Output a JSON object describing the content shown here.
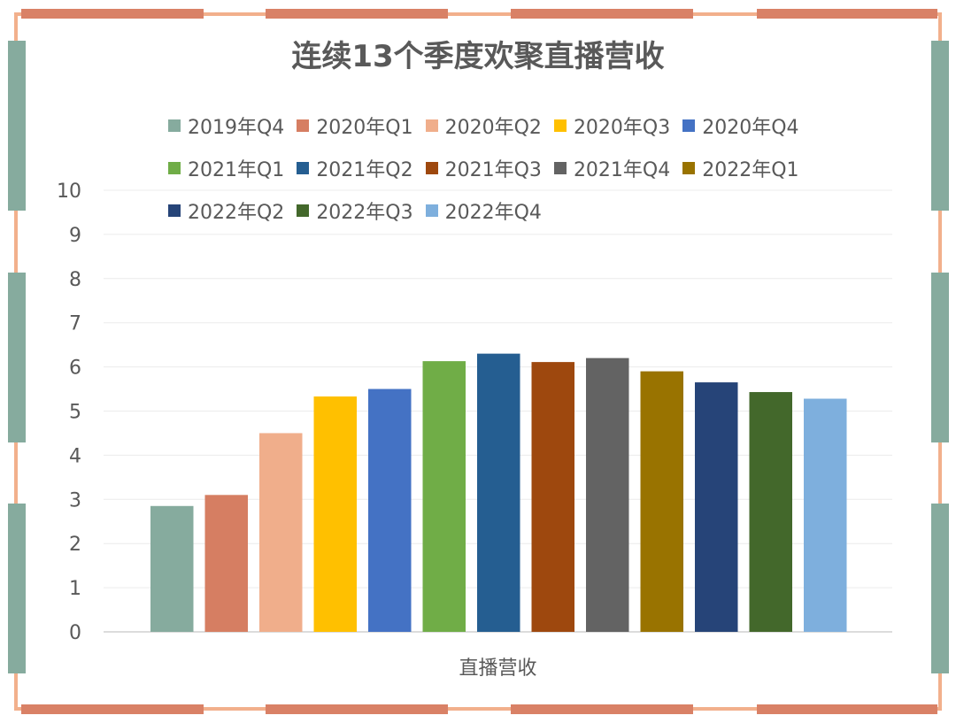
{
  "chart_data": {
    "type": "bar",
    "title": "连续13个季度欢聚直播营收",
    "categories": [
      "直播营收"
    ],
    "xlabel": "直播营收",
    "ylabel": "",
    "ylim": [
      0,
      10
    ],
    "yticks": [
      "0",
      "1",
      "2",
      "3",
      "4",
      "5",
      "6",
      "7",
      "8",
      "9",
      "10"
    ],
    "grid": true,
    "legend_position": "top",
    "series": [
      {
        "name": "2019年Q4",
        "values": [
          2.85
        ],
        "color": "#86ab9e"
      },
      {
        "name": "2020年Q1",
        "values": [
          3.1
        ],
        "color": "#d67e62"
      },
      {
        "name": "2020年Q2",
        "values": [
          4.5
        ],
        "color": "#f0ae8b"
      },
      {
        "name": "2020年Q3",
        "values": [
          5.33
        ],
        "color": "#ffc000"
      },
      {
        "name": "2020年Q4",
        "values": [
          5.5
        ],
        "color": "#4472c4"
      },
      {
        "name": "2021年Q1",
        "values": [
          6.13
        ],
        "color": "#70ad47"
      },
      {
        "name": "2021年Q2",
        "values": [
          6.3
        ],
        "color": "#255e91"
      },
      {
        "name": "2021年Q3",
        "values": [
          6.11
        ],
        "color": "#9e480e"
      },
      {
        "name": "2021年Q4",
        "values": [
          6.2
        ],
        "color": "#636363"
      },
      {
        "name": "2022年Q1",
        "values": [
          5.9
        ],
        "color": "#997300"
      },
      {
        "name": "2022年Q2",
        "values": [
          5.65
        ],
        "color": "#264478"
      },
      {
        "name": "2022年Q3",
        "values": [
          5.43
        ],
        "color": "#43682b"
      },
      {
        "name": "2022年Q4",
        "values": [
          5.28
        ],
        "color": "#7eafdd"
      }
    ]
  }
}
